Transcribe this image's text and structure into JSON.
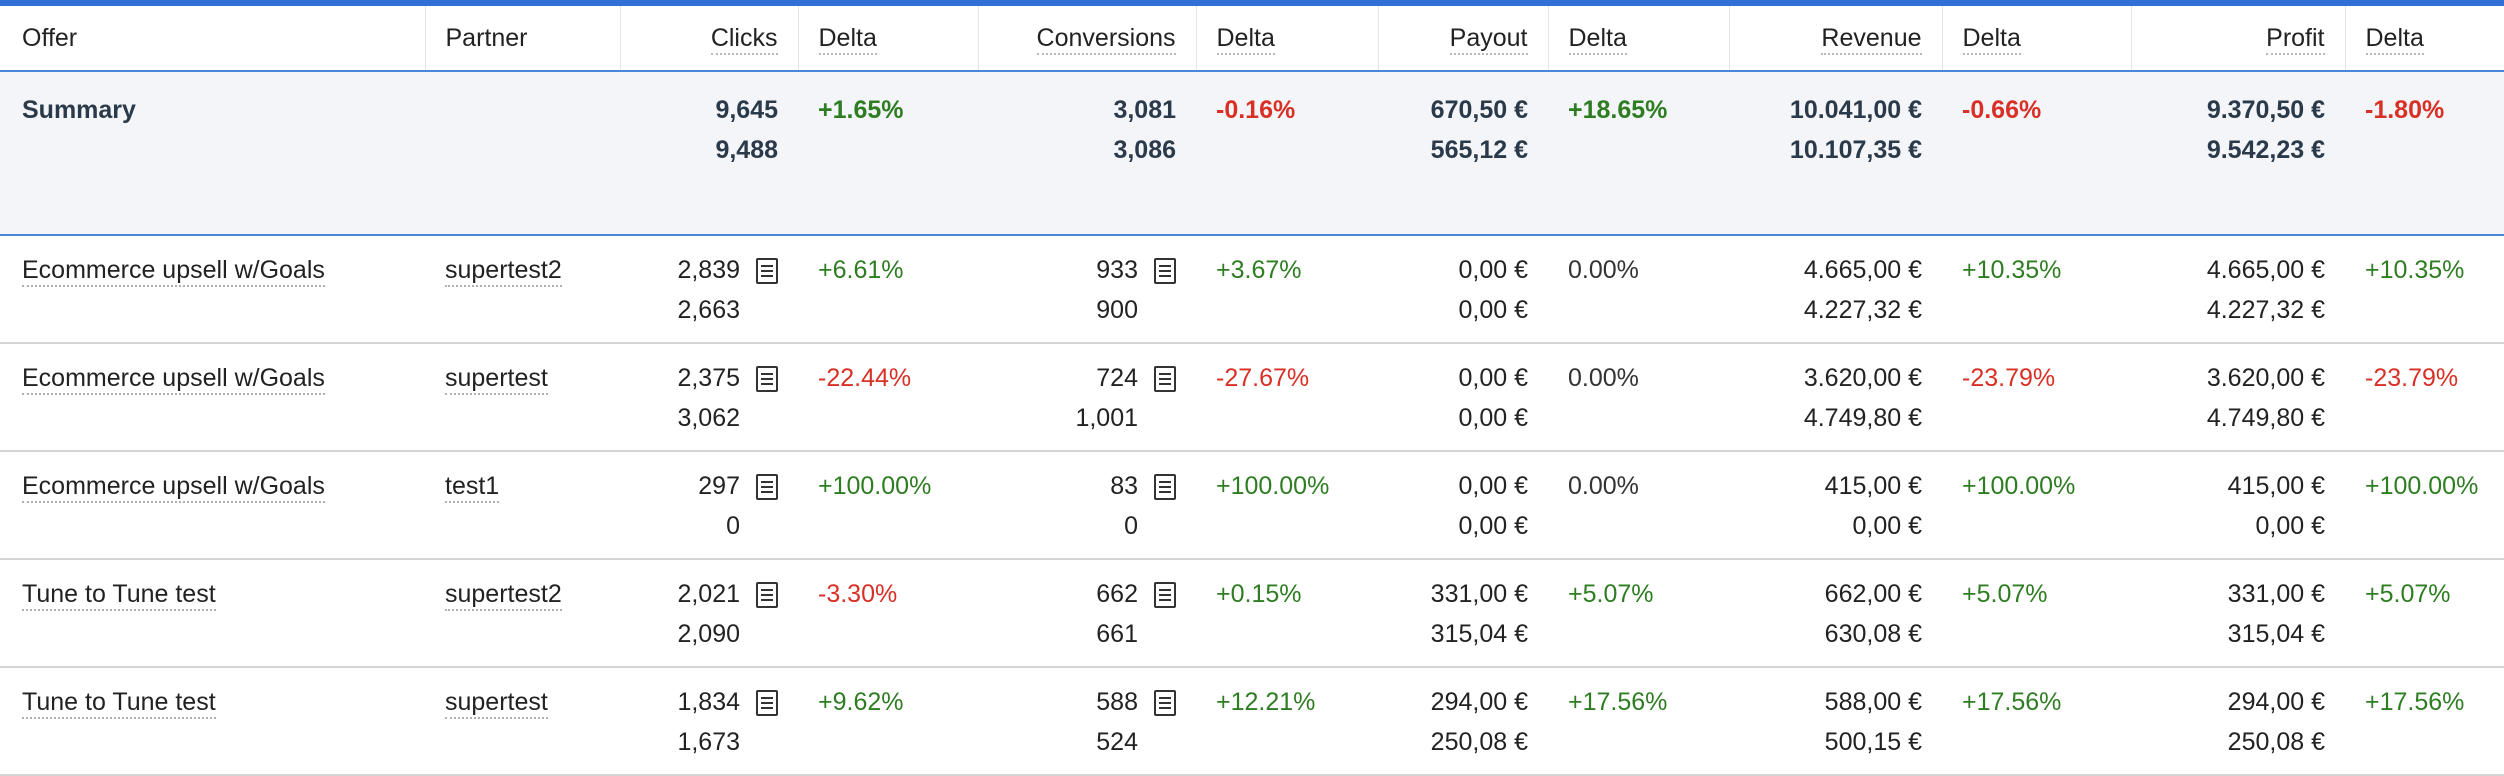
{
  "headers": {
    "offer": "Offer",
    "partner": "Partner",
    "clicks": "Clicks",
    "delta": "Delta",
    "conversions": "Conversions",
    "payout": "Payout",
    "revenue": "Revenue",
    "profit": "Profit"
  },
  "summary": {
    "label": "Summary",
    "clicks": [
      "9,645",
      "9,488"
    ],
    "clicks_delta": "+1.65%",
    "conversions": [
      "3,081",
      "3,086"
    ],
    "conversions_delta": "-0.16%",
    "payout": [
      "670,50 €",
      "565,12 €"
    ],
    "payout_delta": "+18.65%",
    "revenue": [
      "10.041,00 €",
      "10.107,35 €"
    ],
    "revenue_delta": "-0.66%",
    "profit": [
      "9.370,50 €",
      "9.542,23 €"
    ],
    "profit_delta": "-1.80%"
  },
  "rows": [
    {
      "offer": "Ecommerce upsell w/Goals",
      "partner": "supertest2",
      "clicks": [
        "2,839",
        "2,663"
      ],
      "clicks_delta": "+6.61%",
      "conversions": [
        "933",
        "900"
      ],
      "conversions_delta": "+3.67%",
      "payout": [
        "0,00 €",
        "0,00 €"
      ],
      "payout_delta": "0.00%",
      "revenue": [
        "4.665,00 €",
        "4.227,32 €"
      ],
      "revenue_delta": "+10.35%",
      "profit": [
        "4.665,00 €",
        "4.227,32 €"
      ],
      "profit_delta": "+10.35%"
    },
    {
      "offer": "Ecommerce upsell w/Goals",
      "partner": "supertest",
      "clicks": [
        "2,375",
        "3,062"
      ],
      "clicks_delta": "-22.44%",
      "conversions": [
        "724",
        "1,001"
      ],
      "conversions_delta": "-27.67%",
      "payout": [
        "0,00 €",
        "0,00 €"
      ],
      "payout_delta": "0.00%",
      "revenue": [
        "3.620,00 €",
        "4.749,80 €"
      ],
      "revenue_delta": "-23.79%",
      "profit": [
        "3.620,00 €",
        "4.749,80 €"
      ],
      "profit_delta": "-23.79%"
    },
    {
      "offer": "Ecommerce upsell w/Goals",
      "partner": "test1",
      "clicks": [
        "297",
        "0"
      ],
      "clicks_delta": "+100.00%",
      "conversions": [
        "83",
        "0"
      ],
      "conversions_delta": "+100.00%",
      "payout": [
        "0,00 €",
        "0,00 €"
      ],
      "payout_delta": "0.00%",
      "revenue": [
        "415,00 €",
        "0,00 €"
      ],
      "revenue_delta": "+100.00%",
      "profit": [
        "415,00 €",
        "0,00 €"
      ],
      "profit_delta": "+100.00%"
    },
    {
      "offer": "Tune to Tune test",
      "partner": "supertest2",
      "clicks": [
        "2,021",
        "2,090"
      ],
      "clicks_delta": "-3.30%",
      "conversions": [
        "662",
        "661"
      ],
      "conversions_delta": "+0.15%",
      "payout": [
        "331,00 €",
        "315,04 €"
      ],
      "payout_delta": "+5.07%",
      "revenue": [
        "662,00 €",
        "630,08 €"
      ],
      "revenue_delta": "+5.07%",
      "profit": [
        "331,00 €",
        "315,04 €"
      ],
      "profit_delta": "+5.07%"
    },
    {
      "offer": "Tune to Tune test",
      "partner": "supertest",
      "clicks": [
        "1,834",
        "1,673"
      ],
      "clicks_delta": "+9.62%",
      "conversions": [
        "588",
        "524"
      ],
      "conversions_delta": "+12.21%",
      "payout": [
        "294,00 €",
        "250,08 €"
      ],
      "payout_delta": "+17.56%",
      "revenue": [
        "588,00 €",
        "500,15 €"
      ],
      "revenue_delta": "+17.56%",
      "profit": [
        "294,00 €",
        "250,08 €"
      ],
      "profit_delta": "+17.56%"
    }
  ],
  "icons": {
    "detail": "document-list-icon"
  },
  "colors": {
    "accent": "#2f6fd6",
    "positive": "#2e7d22",
    "negative": "#d93025"
  }
}
